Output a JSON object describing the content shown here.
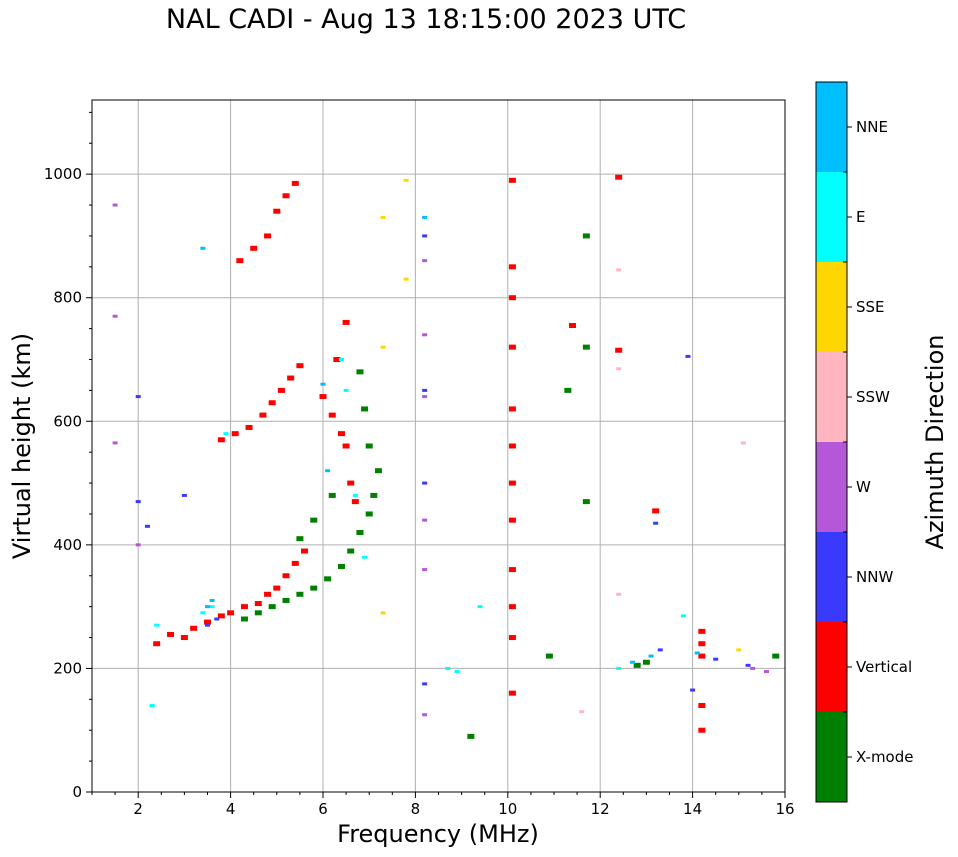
{
  "chart_data": {
    "type": "scatter",
    "title": "NAL CADI - Aug 13 18:15:00 2023 UTC",
    "xlabel": "Frequency (MHz)",
    "ylabel": "Virtual height (km)",
    "xlim": [
      1,
      16
    ],
    "ylim": [
      0,
      1120
    ],
    "xticks": [
      2,
      4,
      6,
      8,
      10,
      12,
      14,
      16
    ],
    "yticks": [
      0,
      200,
      400,
      600,
      800,
      1000
    ],
    "grid": true,
    "colorbar": {
      "label": "Azimuth Direction",
      "categories": [
        "X-mode",
        "Vertical",
        "NNW",
        "W",
        "SSW",
        "SSE",
        "E",
        "NNE"
      ],
      "colors": [
        "#008000",
        "#ff0000",
        "#3a3aff",
        "#b558d8",
        "#ffb6c1",
        "#ffd700",
        "#00ffff",
        "#00bfff"
      ]
    },
    "series": [
      {
        "name": "Vertical",
        "x": [
          2.4,
          2.7,
          3.0,
          3.2,
          3.5,
          3.8,
          4.0,
          4.3,
          4.6,
          4.8,
          5.0,
          5.2,
          5.4,
          5.6,
          3.8,
          4.1,
          4.4,
          4.7,
          4.9,
          5.1,
          5.3,
          5.5,
          4.2,
          4.5,
          4.8,
          5.0,
          5.2,
          5.4,
          6.0,
          6.2,
          6.4,
          6.5,
          6.6,
          6.7,
          6.8,
          6.3,
          6.5,
          10.1,
          10.1,
          10.1,
          10.1,
          10.1,
          10.1,
          10.1,
          10.1,
          10.1,
          10.1,
          10.1,
          10.1,
          12.4,
          12.4,
          14.2,
          14.2,
          14.2,
          14.2,
          14.2,
          13.2,
          11.4
        ],
        "y": [
          240,
          255,
          250,
          265,
          275,
          285,
          290,
          300,
          305,
          320,
          330,
          350,
          370,
          390,
          570,
          580,
          590,
          610,
          630,
          650,
          670,
          690,
          860,
          880,
          900,
          940,
          965,
          985,
          640,
          610,
          580,
          560,
          500,
          470,
          420,
          700,
          760,
          990,
          850,
          800,
          720,
          620,
          560,
          500,
          440,
          360,
          300,
          250,
          160,
          995,
          715,
          260,
          240,
          220,
          140,
          100,
          455,
          755
        ]
      },
      {
        "name": "X-mode",
        "x": [
          4.3,
          4.6,
          4.9,
          5.2,
          5.5,
          5.8,
          6.1,
          6.4,
          6.6,
          6.8,
          7.0,
          7.1,
          7.2,
          7.0,
          6.9,
          6.8,
          5.5,
          5.8,
          6.2,
          11.7,
          11.7,
          11.7,
          11.3,
          10.9,
          12.8,
          13.0,
          15.8,
          9.2
        ],
        "y": [
          280,
          290,
          300,
          310,
          320,
          330,
          345,
          365,
          390,
          420,
          450,
          480,
          520,
          560,
          620,
          680,
          410,
          440,
          480,
          900,
          720,
          470,
          650,
          220,
          205,
          210,
          220,
          90
        ]
      },
      {
        "name": "NNW",
        "x": [
          3.5,
          3.7,
          2.0,
          2.0,
          2.2,
          3.0,
          8.2,
          8.2,
          8.2,
          8.2,
          13.2,
          13.9,
          14.5,
          13.3,
          14.0,
          15.2
        ],
        "y": [
          270,
          280,
          640,
          470,
          430,
          480,
          900,
          650,
          500,
          175,
          435,
          705,
          215,
          230,
          165,
          205
        ]
      },
      {
        "name": "W",
        "x": [
          1.5,
          1.5,
          1.5,
          2.0,
          8.2,
          8.2,
          8.2,
          8.2,
          8.2,
          8.2,
          15.3,
          15.6
        ],
        "y": [
          950,
          770,
          565,
          400,
          860,
          740,
          640,
          440,
          360,
          125,
          200,
          195
        ]
      },
      {
        "name": "SSW",
        "x": [
          12.4,
          12.4,
          12.4,
          15.1,
          11.6
        ],
        "y": [
          845,
          685,
          320,
          565,
          130
        ]
      },
      {
        "name": "SSE",
        "x": [
          7.3,
          7.3,
          7.3,
          7.8,
          7.8,
          15.0
        ],
        "y": [
          930,
          720,
          290,
          990,
          830,
          230
        ]
      },
      {
        "name": "E",
        "x": [
          3.4,
          3.6,
          3.9,
          2.3,
          2.4,
          6.4,
          6.5,
          6.7,
          6.9,
          8.7,
          8.9,
          9.4,
          12.4,
          13.8
        ],
        "y": [
          290,
          300,
          580,
          140,
          270,
          700,
          650,
          480,
          380,
          200,
          195,
          300,
          200,
          285
        ]
      },
      {
        "name": "NNE",
        "x": [
          3.5,
          3.6,
          3.4,
          6.0,
          6.1,
          8.2,
          12.7,
          13.1,
          14.1
        ],
        "y": [
          300,
          310,
          880,
          660,
          520,
          930,
          210,
          220,
          225
        ]
      }
    ]
  }
}
